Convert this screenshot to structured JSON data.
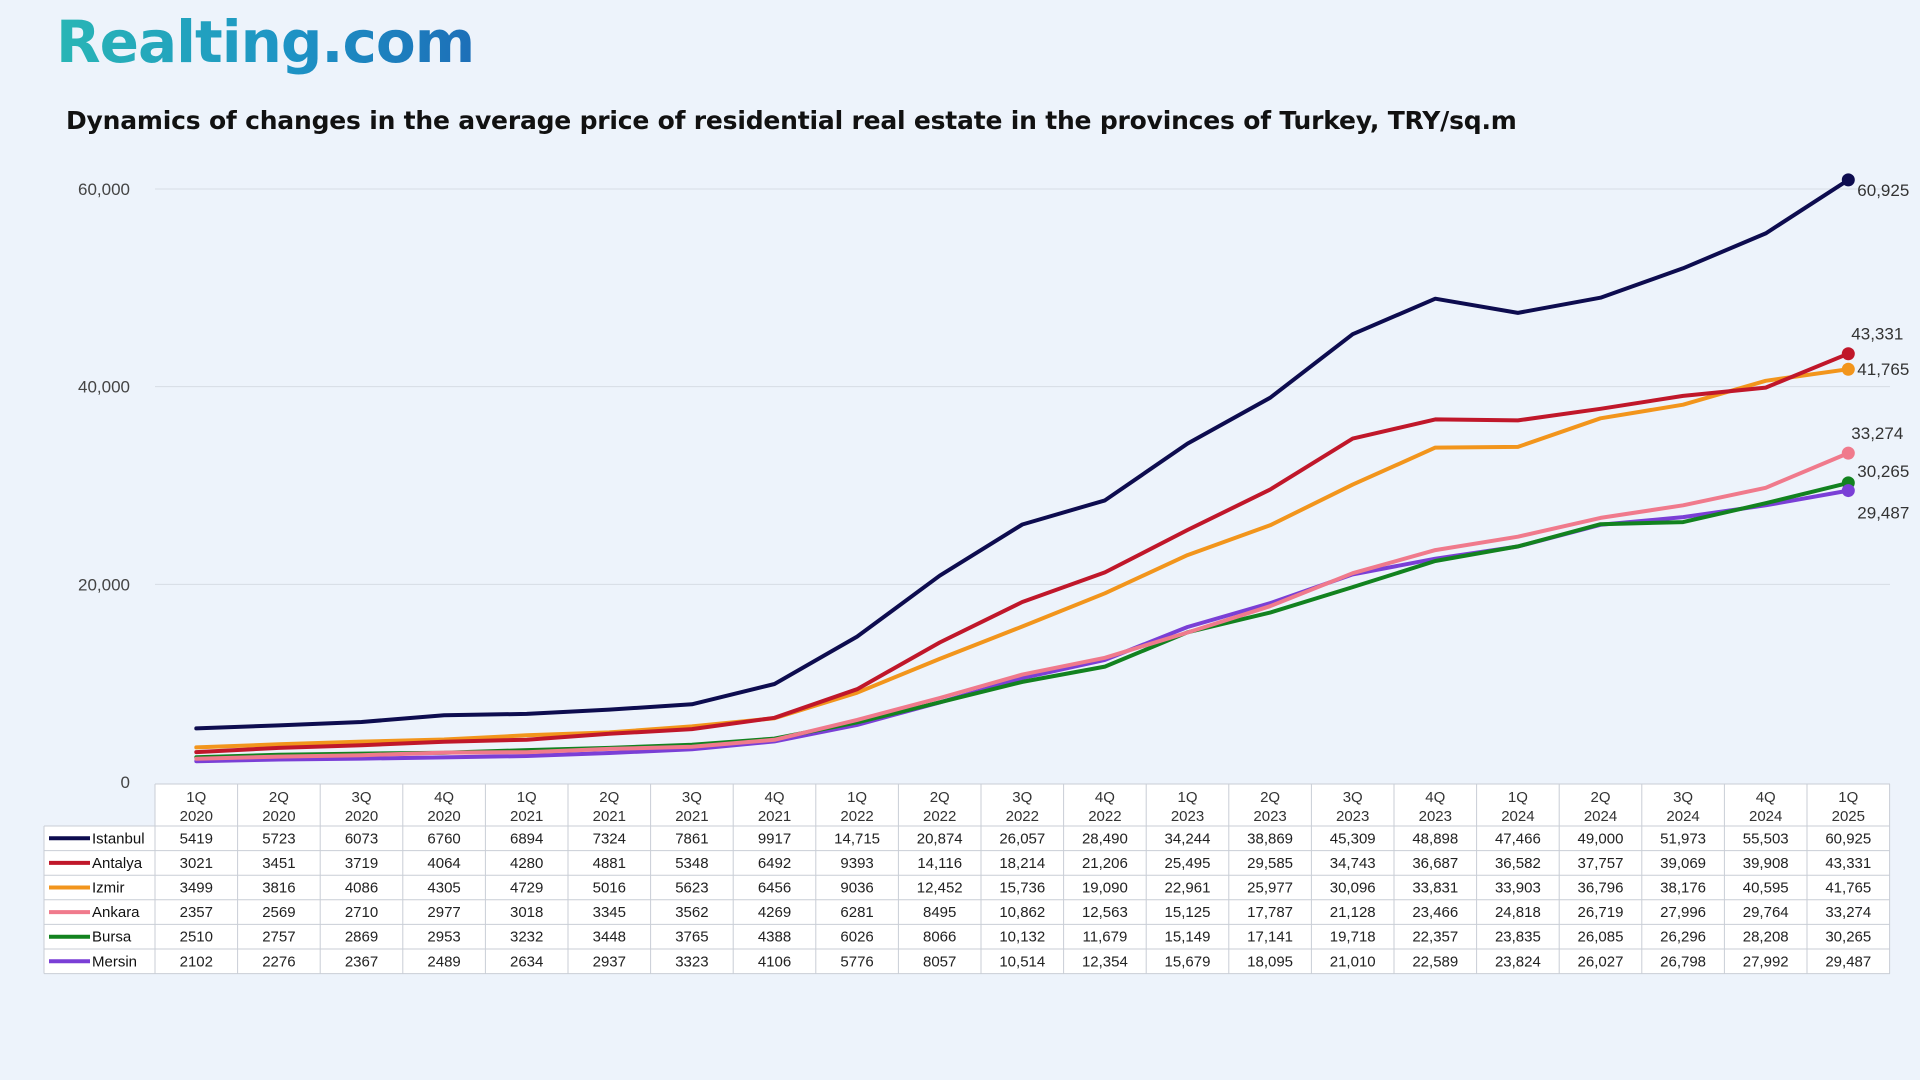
{
  "logo": "Realting.com",
  "chart_data": {
    "type": "line",
    "title": "Dynamics of changes in the average price of residential real estate in the provinces of Turkey, TRY/sq.m",
    "xlabel": "",
    "ylabel": "",
    "ylim": [
      0,
      60000
    ],
    "yticks": [
      "0",
      "20,000",
      "40,000",
      "60,000"
    ],
    "grid": true,
    "legend": "data-table",
    "categories": [
      [
        "1Q",
        "2020"
      ],
      [
        "2Q",
        "2020"
      ],
      [
        "3Q",
        "2020"
      ],
      [
        "4Q",
        "2020"
      ],
      [
        "1Q",
        "2021"
      ],
      [
        "2Q",
        "2021"
      ],
      [
        "3Q",
        "2021"
      ],
      [
        "4Q",
        "2021"
      ],
      [
        "1Q",
        "2022"
      ],
      [
        "2Q",
        "2022"
      ],
      [
        "3Q",
        "2022"
      ],
      [
        "4Q",
        "2022"
      ],
      [
        "1Q",
        "2023"
      ],
      [
        "2Q",
        "2023"
      ],
      [
        "3Q",
        "2023"
      ],
      [
        "4Q",
        "2023"
      ],
      [
        "1Q",
        "2024"
      ],
      [
        "2Q",
        "2024"
      ],
      [
        "3Q",
        "2024"
      ],
      [
        "4Q",
        "2024"
      ],
      [
        "1Q",
        "2025"
      ]
    ],
    "series": [
      {
        "name": "Istanbul",
        "color": "#0d0c4f",
        "values": [
          5419,
          5723,
          6073,
          6760,
          6894,
          7324,
          7861,
          9917,
          14715,
          20874,
          26057,
          28490,
          34244,
          38869,
          45309,
          48898,
          47466,
          49000,
          51973,
          55503,
          60925
        ],
        "labels": [
          "5419",
          "5723",
          "6073",
          "6760",
          "6894",
          "7324",
          "7861",
          "9917",
          "14,715",
          "20,874",
          "26,057",
          "28,490",
          "34,244",
          "38,869",
          "45,309",
          "48,898",
          "47,466",
          "49,000",
          "51,973",
          "55,503",
          "60,925"
        ],
        "end_label": "60,925"
      },
      {
        "name": "Antalya",
        "color": "#c0172a",
        "values": [
          3021,
          3451,
          3719,
          4064,
          4280,
          4881,
          5348,
          6492,
          9393,
          14116,
          18214,
          21206,
          25495,
          29585,
          34743,
          36687,
          36582,
          37757,
          39069,
          39908,
          43331
        ],
        "labels": [
          "3021",
          "3451",
          "3719",
          "4064",
          "4280",
          "4881",
          "5348",
          "6492",
          "9393",
          "14,116",
          "18,214",
          "21,206",
          "25,495",
          "29,585",
          "34,743",
          "36,687",
          "36,582",
          "37,757",
          "39,069",
          "39,908",
          "43,331"
        ],
        "end_label": "43,331"
      },
      {
        "name": "Izmir",
        "color": "#f2951c",
        "values": [
          3499,
          3816,
          4086,
          4305,
          4729,
          5016,
          5623,
          6456,
          9036,
          12452,
          15736,
          19090,
          22961,
          25977,
          30096,
          33831,
          33903,
          36796,
          38176,
          40595,
          41765
        ],
        "labels": [
          "3499",
          "3816",
          "4086",
          "4305",
          "4729",
          "5016",
          "5623",
          "6456",
          "9036",
          "12,452",
          "15,736",
          "19,090",
          "22,961",
          "25,977",
          "30,096",
          "33,831",
          "33,903",
          "36,796",
          "38,176",
          "40,595",
          "41,765"
        ],
        "end_label": "41,765"
      },
      {
        "name": "Ankara",
        "color": "#f07a8c",
        "values": [
          2357,
          2569,
          2710,
          2977,
          3018,
          3345,
          3562,
          4269,
          6281,
          8495,
          10862,
          12563,
          15125,
          17787,
          21128,
          23466,
          24818,
          26719,
          27996,
          29764,
          33274
        ],
        "labels": [
          "2357",
          "2569",
          "2710",
          "2977",
          "3018",
          "3345",
          "3562",
          "4269",
          "6281",
          "8495",
          "10,862",
          "12,563",
          "15,125",
          "17,787",
          "21,128",
          "23,466",
          "24,818",
          "26,719",
          "27,996",
          "29,764",
          "33,274"
        ],
        "end_label": "33,274"
      },
      {
        "name": "Bursa",
        "color": "#12821f",
        "values": [
          2510,
          2757,
          2869,
          2953,
          3232,
          3448,
          3765,
          4388,
          6026,
          8066,
          10132,
          11679,
          15149,
          17141,
          19718,
          22357,
          23835,
          26085,
          26296,
          28208,
          30265
        ],
        "labels": [
          "2510",
          "2757",
          "2869",
          "2953",
          "3232",
          "3448",
          "3765",
          "4388",
          "6026",
          "8066",
          "10,132",
          "11,679",
          "15,149",
          "17,141",
          "19,718",
          "22,357",
          "23,835",
          "26,085",
          "26,296",
          "28,208",
          "30,265"
        ],
        "end_label": "30,265"
      },
      {
        "name": "Mersin",
        "color": "#7a3fd6",
        "values": [
          2102,
          2276,
          2367,
          2489,
          2634,
          2937,
          3323,
          4106,
          5776,
          8057,
          10514,
          12354,
          15679,
          18095,
          21010,
          22589,
          23824,
          26027,
          26798,
          27992,
          29487
        ],
        "labels": [
          "2102",
          "2276",
          "2367",
          "2489",
          "2634",
          "2937",
          "3323",
          "4106",
          "5776",
          "8057",
          "10,514",
          "12,354",
          "15,679",
          "18,095",
          "21,010",
          "22,589",
          "23,824",
          "26,027",
          "26,798",
          "27,992",
          "29,487"
        ],
        "end_label": "29,487"
      }
    ]
  }
}
